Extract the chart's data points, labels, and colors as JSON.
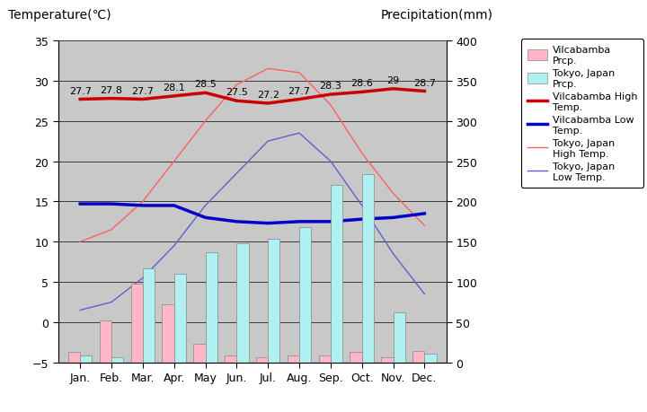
{
  "months": [
    "Jan.",
    "Feb.",
    "Mar.",
    "Apr.",
    "May",
    "Jun.",
    "Jul.",
    "Aug.",
    "Sep.",
    "Oct.",
    "Nov.",
    "Dec."
  ],
  "vilcabamba_high": [
    27.7,
    27.8,
    27.7,
    28.1,
    28.5,
    27.5,
    27.2,
    27.7,
    28.3,
    28.6,
    29.0,
    28.7
  ],
  "vilcabamba_low": [
    14.7,
    14.7,
    14.5,
    14.5,
    13.0,
    12.5,
    12.3,
    12.5,
    12.5,
    12.8,
    13.0,
    13.5
  ],
  "tokyo_high": [
    10.0,
    11.5,
    15.0,
    20.0,
    25.0,
    29.5,
    31.5,
    31.0,
    27.0,
    21.0,
    16.0,
    12.0
  ],
  "tokyo_low": [
    1.5,
    2.5,
    5.5,
    9.5,
    14.5,
    18.5,
    22.5,
    23.5,
    20.0,
    14.5,
    8.5,
    3.5
  ],
  "vilcabamba_precip_mm": [
    13,
    52,
    98,
    72,
    23,
    9,
    7,
    9,
    9,
    13,
    7,
    14
  ],
  "tokyo_precip_mm": [
    9,
    7,
    117,
    110,
    137,
    148,
    154,
    168,
    220,
    234,
    62,
    11
  ],
  "bg_color": "#c8c8c8",
  "vilcabamba_bar_color": "#ffb6c8",
  "tokyo_bar_color": "#b0f0f0",
  "vilcabamba_high_color": "#cc0000",
  "vilcabamba_low_color": "#0000cc",
  "tokyo_high_color": "#ff6060",
  "tokyo_low_color": "#6060cc",
  "ylim_temp": [
    -5,
    35
  ],
  "ylim_precip": [
    0,
    400
  ],
  "title_left": "Temperature(℃)",
  "title_right": "Precipitation(mm)",
  "annot_labels": [
    "27.7",
    "27.8",
    "27.7",
    "28.1",
    "28.5",
    "27.5",
    "27.2",
    "27.7",
    "28.3",
    "28.6",
    "29",
    "28.7"
  ]
}
